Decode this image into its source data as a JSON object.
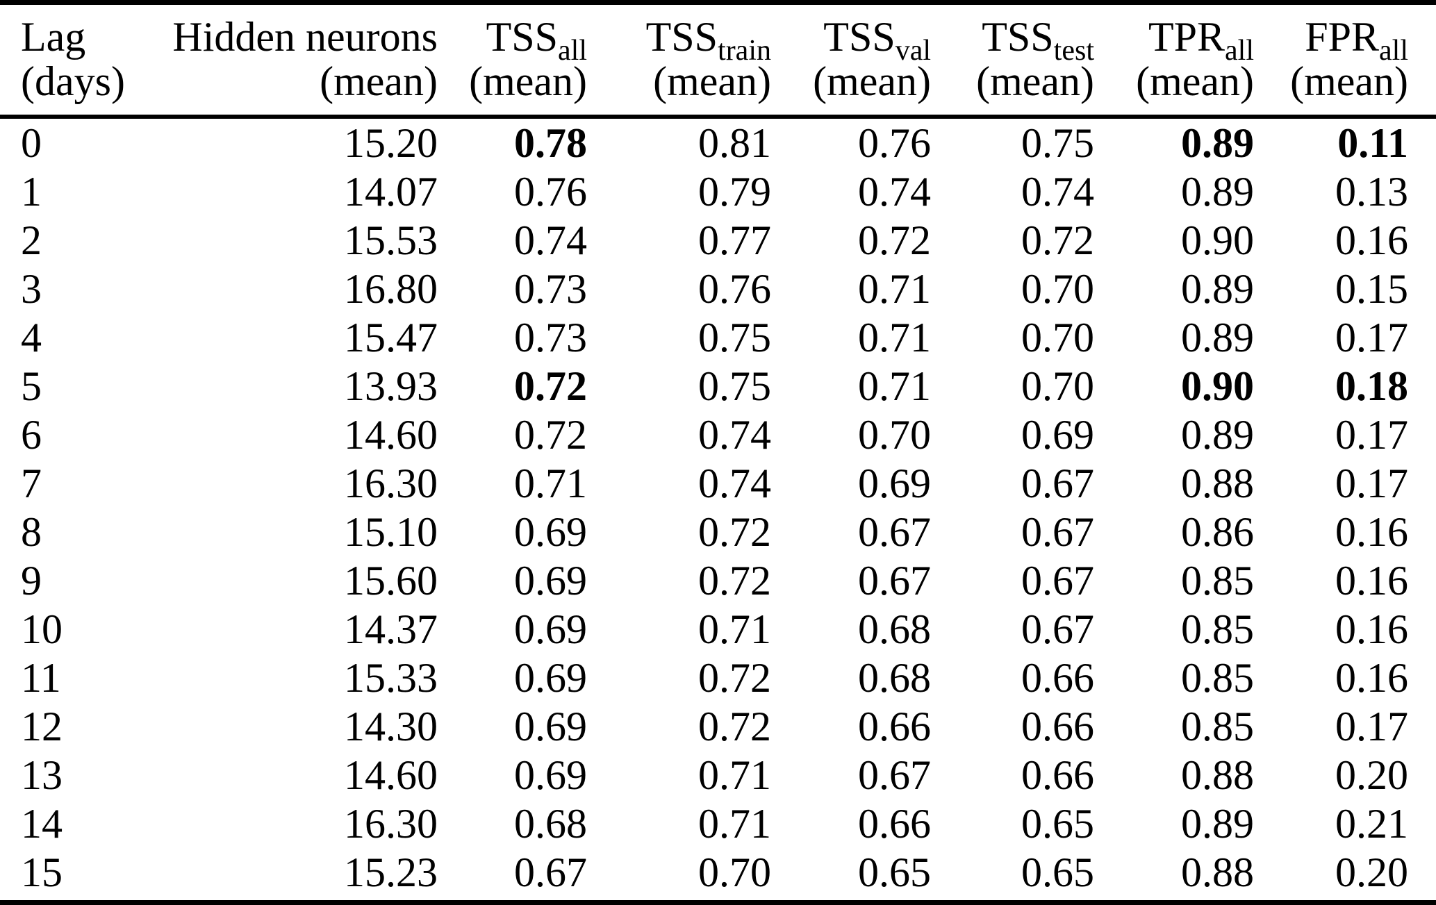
{
  "colors": {
    "background": "#ffffff",
    "text": "#000000",
    "rule": "#000000"
  },
  "table": {
    "columns": [
      {
        "label": "Lag",
        "sub": "",
        "unit": "(days)"
      },
      {
        "label": "Hidden neurons",
        "sub": "",
        "unit": "(mean)"
      },
      {
        "label": "TSS",
        "sub": "all",
        "unit": "(mean)"
      },
      {
        "label": "TSS",
        "sub": "train",
        "unit": "(mean)"
      },
      {
        "label": "TSS",
        "sub": "val",
        "unit": "(mean)"
      },
      {
        "label": "TSS",
        "sub": "test",
        "unit": "(mean)"
      },
      {
        "label": "TPR",
        "sub": "all",
        "unit": "(mean)"
      },
      {
        "label": "FPR",
        "sub": "all",
        "unit": "(mean)"
      }
    ],
    "rows": [
      {
        "cells": [
          "0",
          "15.20",
          "0.78",
          "0.81",
          "0.76",
          "0.75",
          "0.89",
          "0.11"
        ],
        "bold": [
          2,
          6,
          7
        ]
      },
      {
        "cells": [
          "1",
          "14.07",
          "0.76",
          "0.79",
          "0.74",
          "0.74",
          "0.89",
          "0.13"
        ],
        "bold": []
      },
      {
        "cells": [
          "2",
          "15.53",
          "0.74",
          "0.77",
          "0.72",
          "0.72",
          "0.90",
          "0.16"
        ],
        "bold": []
      },
      {
        "cells": [
          "3",
          "16.80",
          "0.73",
          "0.76",
          "0.71",
          "0.70",
          "0.89",
          "0.15"
        ],
        "bold": []
      },
      {
        "cells": [
          "4",
          "15.47",
          "0.73",
          "0.75",
          "0.71",
          "0.70",
          "0.89",
          "0.17"
        ],
        "bold": []
      },
      {
        "cells": [
          "5",
          "13.93",
          "0.72",
          "0.75",
          "0.71",
          "0.70",
          "0.90",
          "0.18"
        ],
        "bold": [
          2,
          6,
          7
        ]
      },
      {
        "cells": [
          "6",
          "14.60",
          "0.72",
          "0.74",
          "0.70",
          "0.69",
          "0.89",
          "0.17"
        ],
        "bold": []
      },
      {
        "cells": [
          "7",
          "16.30",
          "0.71",
          "0.74",
          "0.69",
          "0.67",
          "0.88",
          "0.17"
        ],
        "bold": []
      },
      {
        "cells": [
          "8",
          "15.10",
          "0.69",
          "0.72",
          "0.67",
          "0.67",
          "0.86",
          "0.16"
        ],
        "bold": []
      },
      {
        "cells": [
          "9",
          "15.60",
          "0.69",
          "0.72",
          "0.67",
          "0.67",
          "0.85",
          "0.16"
        ],
        "bold": []
      },
      {
        "cells": [
          "10",
          "14.37",
          "0.69",
          "0.71",
          "0.68",
          "0.67",
          "0.85",
          "0.16"
        ],
        "bold": []
      },
      {
        "cells": [
          "11",
          "15.33",
          "0.69",
          "0.72",
          "0.68",
          "0.66",
          "0.85",
          "0.16"
        ],
        "bold": []
      },
      {
        "cells": [
          "12",
          "14.30",
          "0.69",
          "0.72",
          "0.66",
          "0.66",
          "0.85",
          "0.17"
        ],
        "bold": []
      },
      {
        "cells": [
          "13",
          "14.60",
          "0.69",
          "0.71",
          "0.67",
          "0.66",
          "0.88",
          "0.20"
        ],
        "bold": []
      },
      {
        "cells": [
          "14",
          "16.30",
          "0.68",
          "0.71",
          "0.66",
          "0.65",
          "0.89",
          "0.21"
        ],
        "bold": []
      },
      {
        "cells": [
          "15",
          "15.23",
          "0.67",
          "0.70",
          "0.65",
          "0.65",
          "0.88",
          "0.20"
        ],
        "bold": []
      }
    ]
  }
}
